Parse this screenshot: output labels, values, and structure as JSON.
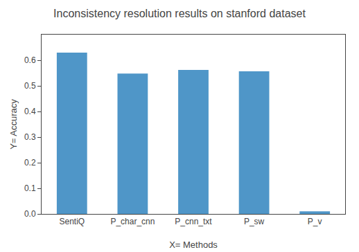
{
  "chart_data": {
    "type": "bar",
    "title": "Inconsistency resolution results on stanford dataset",
    "xlabel": "X= Methods",
    "ylabel": "Y= Accuracy",
    "categories": [
      "SentiQ",
      "P_char_cnn",
      "P_cnn_txt",
      "P_sw",
      "P_v"
    ],
    "values": [
      0.63,
      0.548,
      0.562,
      0.557,
      0.01
    ],
    "color": "#4f96c8",
    "ylim": [
      0,
      0.7
    ],
    "yticks": [
      {
        "value": 0,
        "label": "0.0"
      },
      0.1,
      0.2,
      0.3,
      0.4,
      0.5,
      0.6
    ],
    "grid": false
  }
}
